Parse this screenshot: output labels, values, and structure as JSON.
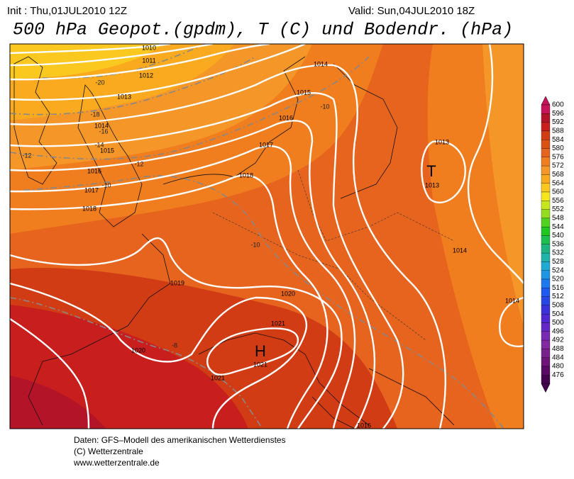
{
  "header": {
    "init": "Init : Thu,01JUL2010 12Z",
    "valid": "Valid: Sun,04JUL2010 18Z",
    "title": "500 hPa Geopot.(gpdm), T (C) und Bodendr. (hPa)"
  },
  "map": {
    "isobar_labels": [
      1010,
      1011,
      1012,
      1013,
      1014,
      1015,
      1016,
      1017,
      1018,
      1014,
      1015,
      1016,
      1017,
      1018,
      1019,
      1020,
      1021,
      1021,
      1020,
      1013,
      1014,
      1014,
      1016
    ],
    "temperature_labels": [
      -20,
      -18,
      -16,
      -14,
      -12,
      -12,
      -10,
      -10,
      -10,
      -8
    ],
    "high": {
      "symbol": "H",
      "pressure": 1021
    },
    "low": {
      "symbol": "T",
      "pressure": 1013
    }
  },
  "legend": {
    "items": [
      {
        "label": 600,
        "color": "#c8145a"
      },
      {
        "label": 596,
        "color": "#b41428"
      },
      {
        "label": 592,
        "color": "#c81e1e"
      },
      {
        "label": 588,
        "color": "#d23c14"
      },
      {
        "label": 584,
        "color": "#dc5014"
      },
      {
        "label": 580,
        "color": "#e6641e"
      },
      {
        "label": 576,
        "color": "#f07d1e"
      },
      {
        "label": 572,
        "color": "#f59628"
      },
      {
        "label": 568,
        "color": "#faaa1e"
      },
      {
        "label": 564,
        "color": "#fac81e"
      },
      {
        "label": 560,
        "color": "#f5e61e"
      },
      {
        "label": 556,
        "color": "#c8e61e"
      },
      {
        "label": 552,
        "color": "#96dc1e"
      },
      {
        "label": 548,
        "color": "#50d21e"
      },
      {
        "label": 544,
        "color": "#1ec81e"
      },
      {
        "label": 540,
        "color": "#1ebe50"
      },
      {
        "label": 536,
        "color": "#1eb482"
      },
      {
        "label": 532,
        "color": "#1eb4aa"
      },
      {
        "label": 528,
        "color": "#1eaad2"
      },
      {
        "label": 524,
        "color": "#1e96e6"
      },
      {
        "label": 520,
        "color": "#1e78f0"
      },
      {
        "label": 516,
        "color": "#1e5af0"
      },
      {
        "label": 512,
        "color": "#2846e6"
      },
      {
        "label": 508,
        "color": "#3c32dc"
      },
      {
        "label": 504,
        "color": "#5028d2"
      },
      {
        "label": 500,
        "color": "#6428c8"
      },
      {
        "label": 496,
        "color": "#7828b4"
      },
      {
        "label": 492,
        "color": "#8228a0"
      },
      {
        "label": 488,
        "color": "#78208c"
      },
      {
        "label": 484,
        "color": "#6e1478"
      },
      {
        "label": 480,
        "color": "#5a0a64"
      },
      {
        "label": 476,
        "color": "#460050"
      }
    ]
  },
  "footer": {
    "source": "Daten: GFS–Modell des amerikanischen Wetterdienstes",
    "copyright": "(C) Wetterzentrale",
    "url": "www.wetterzentrale.de"
  }
}
